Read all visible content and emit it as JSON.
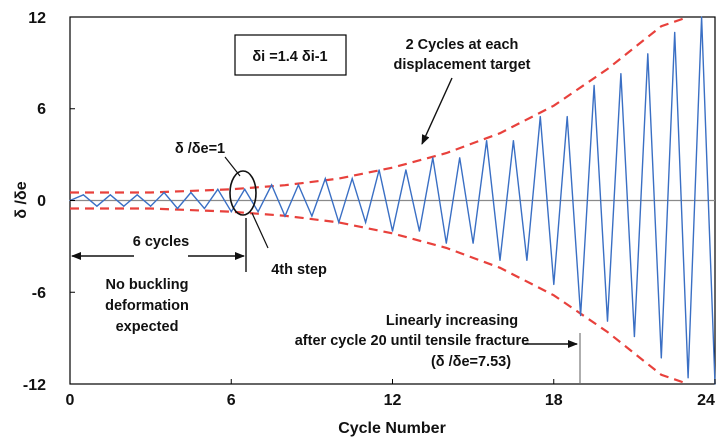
{
  "chart_data": {
    "type": "line",
    "xlabel": "Cycle Number",
    "ylabel": "δ /δe",
    "xlim": [
      0,
      24
    ],
    "ylim": [
      -12,
      12
    ],
    "xticks": [
      0,
      6,
      12,
      18,
      24
    ],
    "yticks": [
      12,
      6,
      0,
      -6,
      -12
    ],
    "grid": false,
    "colors": {
      "loading": "#3a6fc4",
      "envelope": "#e8413c",
      "zero_line": "#8a8a8a",
      "axis": "#000000"
    },
    "series": [
      {
        "style": "solid",
        "points": [
          [
            0,
            0
          ],
          [
            0.5,
            0.37
          ],
          [
            1,
            -0.37
          ],
          [
            1.5,
            0.37
          ],
          [
            2,
            -0.37
          ],
          [
            2.5,
            0.37
          ],
          [
            3,
            -0.37
          ],
          [
            3.5,
            0.52
          ],
          [
            4,
            -0.52
          ],
          [
            4.5,
            0.52
          ],
          [
            5,
            -0.52
          ],
          [
            5.5,
            0.73
          ],
          [
            6,
            -0.73
          ],
          [
            6.5,
            0.73
          ],
          [
            7,
            -0.73
          ],
          [
            7.5,
            1.02
          ],
          [
            8,
            -1.02
          ],
          [
            8.5,
            1.02
          ],
          [
            9,
            -1.02
          ],
          [
            9.5,
            1.43
          ],
          [
            10,
            -1.43
          ],
          [
            10.5,
            1.43
          ],
          [
            11,
            -1.43
          ],
          [
            11.5,
            2.0
          ],
          [
            12,
            -2.0
          ],
          [
            12.5,
            2.0
          ],
          [
            13,
            -2.0
          ],
          [
            13.5,
            2.8
          ],
          [
            14,
            -2.8
          ],
          [
            14.5,
            2.8
          ],
          [
            15,
            -2.8
          ],
          [
            15.5,
            3.92
          ],
          [
            16,
            -3.92
          ],
          [
            16.5,
            3.92
          ],
          [
            17,
            -3.92
          ],
          [
            17.5,
            5.49
          ],
          [
            18,
            -5.49
          ],
          [
            18.5,
            5.49
          ],
          [
            19,
            -7.53
          ],
          [
            19.5,
            7.53
          ],
          [
            20,
            -7.9
          ],
          [
            20.5,
            8.3
          ],
          [
            21,
            -8.9
          ],
          [
            21.5,
            9.6
          ],
          [
            22,
            -10.3
          ],
          [
            22.5,
            11.0
          ],
          [
            23,
            -11.6
          ],
          [
            23.5,
            12.0
          ],
          [
            24,
            -12.0
          ]
        ]
      },
      {
        "style": "dashed",
        "points": [
          [
            0,
            0.52
          ],
          [
            3,
            0.52
          ],
          [
            6,
            0.73
          ],
          [
            8,
            1.0
          ],
          [
            10,
            1.43
          ],
          [
            12,
            2.15
          ],
          [
            14,
            3.1
          ],
          [
            16,
            4.4
          ],
          [
            18,
            6.2
          ],
          [
            20,
            8.6
          ],
          [
            22,
            11.4
          ],
          [
            23,
            12.0
          ]
        ]
      },
      {
        "style": "dashed",
        "points": [
          [
            0,
            -0.52
          ],
          [
            3,
            -0.52
          ],
          [
            6,
            -0.73
          ],
          [
            8,
            -1.0
          ],
          [
            10,
            -1.43
          ],
          [
            12,
            -2.15
          ],
          [
            14,
            -3.1
          ],
          [
            16,
            -4.4
          ],
          [
            18,
            -6.2
          ],
          [
            20,
            -8.6
          ],
          [
            22,
            -11.4
          ],
          [
            23,
            -12.0
          ]
        ]
      }
    ],
    "annotations": {
      "formula_box": "δi =1.4 δi-1",
      "cycles_target_line1": "2 Cycles at each",
      "cycles_target_line2": "displacement target",
      "ratio_one": "δ /δe=1",
      "six_cycles": "6 cycles",
      "fourth_step": "4th step",
      "no_buckling_line1": "No buckling",
      "no_buckling_line2": "deformation",
      "no_buckling_line3": "expected",
      "linear_line1": "Linearly increasing",
      "linear_line2": "after cycle 20 until tensile fracture",
      "linear_line3": "(δ /δe=7.53)"
    }
  }
}
